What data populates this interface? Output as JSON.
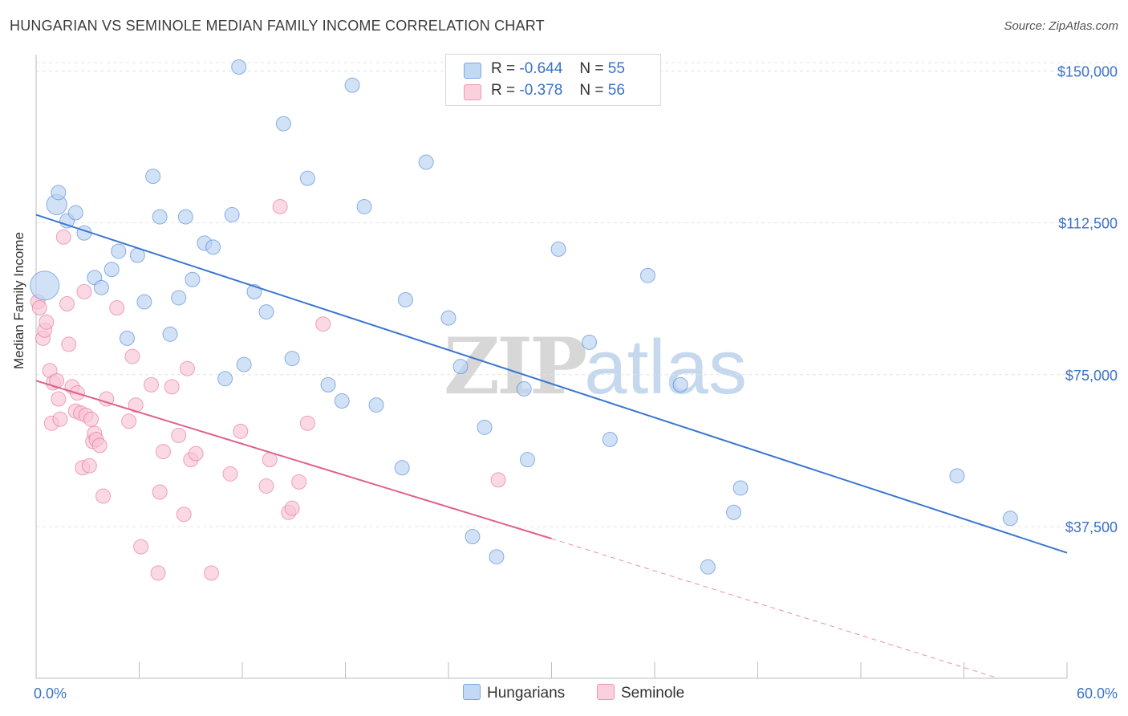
{
  "header": {
    "title": "HUNGARIAN VS SEMINOLE MEDIAN FAMILY INCOME CORRELATION CHART",
    "source": "Source: ZipAtlas.com"
  },
  "watermark": {
    "zip": "ZIP",
    "atlas": "atlas"
  },
  "legend": {
    "rows": [
      {
        "r_label": "R =",
        "r_value": "-0.644",
        "n_label": "N =",
        "n_value": "55",
        "color": "#aac9f0"
      },
      {
        "r_label": "R =",
        "r_value": "-0.378",
        "n_label": "N =",
        "n_value": "56",
        "color": "#f7b6cb"
      }
    ]
  },
  "bottom_legend": {
    "hungarians": "Hungarians",
    "seminole": "Seminole"
  },
  "chart_data": {
    "type": "scatter",
    "ylabel": "Median Family Income",
    "xlim": [
      0,
      60
    ],
    "ylim": [
      0,
      162000
    ],
    "x_tick_labels": [
      "0.0%",
      "60.0%"
    ],
    "y_ticks": [
      {
        "value": 37500,
        "label": "$37,500"
      },
      {
        "value": 75000,
        "label": "$75,000"
      },
      {
        "value": 112500,
        "label": "$112,500"
      },
      {
        "value": 150000,
        "label": "$150,000"
      }
    ],
    "grid": "horizontal dashed",
    "legend_position": "top-center",
    "series": [
      {
        "name": "Hungarians",
        "color": "#3a76d0",
        "fill": "#b9d3f3",
        "trend": {
          "x": [
            0,
            60
          ],
          "y": [
            114500,
            31000
          ]
        },
        "points": [
          [
            0.5,
            97000,
            2.0
          ],
          [
            1.2,
            117000,
            1.4
          ],
          [
            1.3,
            120000,
            1.0
          ],
          [
            1.8,
            113000,
            1.0
          ],
          [
            2.3,
            115000,
            1.0
          ],
          [
            2.8,
            110000,
            1.0
          ],
          [
            3.4,
            99000,
            1.0
          ],
          [
            3.8,
            96500,
            1.0
          ],
          [
            4.4,
            101000,
            1.0
          ],
          [
            4.8,
            105500,
            1.0
          ],
          [
            5.3,
            84000,
            1.0
          ],
          [
            5.9,
            104500,
            1.0
          ],
          [
            6.3,
            93000,
            1.0
          ],
          [
            6.8,
            124000,
            1.0
          ],
          [
            7.2,
            114000,
            1.0
          ],
          [
            7.8,
            85000,
            1.0
          ],
          [
            8.3,
            94000,
            1.0
          ],
          [
            8.7,
            114000,
            1.0
          ],
          [
            9.1,
            98500,
            1.0
          ],
          [
            9.8,
            107500,
            1.0
          ],
          [
            10.3,
            106500,
            1.0
          ],
          [
            11.0,
            74000,
            1.0
          ],
          [
            11.4,
            114500,
            1.0
          ],
          [
            12.1,
            77500,
            1.0
          ],
          [
            11.8,
            151000,
            1.0
          ],
          [
            12.7,
            95500,
            1.0
          ],
          [
            13.4,
            90500,
            1.0
          ],
          [
            14.4,
            137000,
            1.0
          ],
          [
            14.9,
            79000,
            1.0
          ],
          [
            15.8,
            123500,
            1.0
          ],
          [
            17.0,
            72500,
            1.0
          ],
          [
            17.8,
            68500,
            1.0
          ],
          [
            18.4,
            146500,
            1.0
          ],
          [
            19.1,
            116500,
            1.0
          ],
          [
            19.8,
            67500,
            1.0
          ],
          [
            21.3,
            52000,
            1.0
          ],
          [
            21.5,
            93500,
            1.0
          ],
          [
            22.7,
            127500,
            1.0
          ],
          [
            24.0,
            89000,
            1.0
          ],
          [
            24.7,
            77000,
            1.0
          ],
          [
            25.4,
            35000,
            1.0
          ],
          [
            26.1,
            62000,
            1.0
          ],
          [
            26.8,
            30000,
            1.0
          ],
          [
            28.4,
            71500,
            1.0
          ],
          [
            28.6,
            54000,
            1.0
          ],
          [
            30.4,
            106000,
            1.0
          ],
          [
            32.2,
            83000,
            1.0
          ],
          [
            33.4,
            59000,
            1.0
          ],
          [
            35.6,
            99500,
            1.0
          ],
          [
            37.5,
            72500,
            1.0
          ],
          [
            39.1,
            27500,
            1.0
          ],
          [
            40.6,
            41000,
            1.0
          ],
          [
            41.0,
            47000,
            1.0
          ],
          [
            53.6,
            50000,
            1.0
          ],
          [
            56.7,
            39500,
            1.0
          ]
        ]
      },
      {
        "name": "Seminole",
        "color": "#e0608c",
        "fill": "#f9c5d5",
        "trend": {
          "x": [
            0,
            30
          ],
          "y": [
            73500,
            34500
          ]
        },
        "trend_dashed": {
          "x": [
            30,
            56
          ],
          "y": [
            34500,
            0
          ]
        },
        "points": [
          [
            0.1,
            93000,
            1.0
          ],
          [
            0.2,
            91500,
            1.0
          ],
          [
            0.4,
            84000,
            1.0
          ],
          [
            0.5,
            86000,
            1.0
          ],
          [
            0.6,
            88000,
            1.0
          ],
          [
            0.8,
            76000,
            1.0
          ],
          [
            0.9,
            63000,
            1.0
          ],
          [
            1.0,
            73000,
            1.0
          ],
          [
            1.2,
            73500,
            1.0
          ],
          [
            1.3,
            69000,
            1.0
          ],
          [
            1.4,
            64000,
            1.0
          ],
          [
            1.6,
            109000,
            1.0
          ],
          [
            1.8,
            92500,
            1.0
          ],
          [
            1.9,
            82500,
            1.0
          ],
          [
            2.1,
            72000,
            1.0
          ],
          [
            2.3,
            66000,
            1.0
          ],
          [
            2.4,
            70500,
            1.0
          ],
          [
            2.6,
            65500,
            1.0
          ],
          [
            2.7,
            52000,
            1.0
          ],
          [
            2.8,
            95500,
            1.0
          ],
          [
            2.9,
            65000,
            1.0
          ],
          [
            3.1,
            52500,
            1.0
          ],
          [
            3.2,
            64000,
            1.0
          ],
          [
            3.3,
            58500,
            1.0
          ],
          [
            3.4,
            60500,
            1.0
          ],
          [
            3.5,
            59000,
            1.0
          ],
          [
            3.7,
            57500,
            1.0
          ],
          [
            3.9,
            45000,
            1.0
          ],
          [
            4.1,
            69000,
            1.0
          ],
          [
            4.7,
            91500,
            1.0
          ],
          [
            5.4,
            63500,
            1.0
          ],
          [
            5.6,
            79500,
            1.0
          ],
          [
            5.8,
            67500,
            1.0
          ],
          [
            6.1,
            32500,
            1.0
          ],
          [
            6.7,
            72500,
            1.0
          ],
          [
            7.1,
            26000,
            1.0
          ],
          [
            7.2,
            46000,
            1.0
          ],
          [
            7.4,
            56000,
            1.0
          ],
          [
            7.9,
            72000,
            1.0
          ],
          [
            8.3,
            60000,
            1.0
          ],
          [
            8.6,
            40500,
            1.0
          ],
          [
            8.8,
            76500,
            1.0
          ],
          [
            9.0,
            54000,
            1.0
          ],
          [
            9.3,
            55500,
            1.0
          ],
          [
            10.2,
            26000,
            1.0
          ],
          [
            11.3,
            50500,
            1.0
          ],
          [
            11.9,
            61000,
            1.0
          ],
          [
            13.4,
            47500,
            1.0
          ],
          [
            13.6,
            54000,
            1.0
          ],
          [
            14.2,
            116500,
            1.0
          ],
          [
            14.7,
            41000,
            1.0
          ],
          [
            14.9,
            42000,
            1.0
          ],
          [
            15.3,
            48500,
            1.0
          ],
          [
            15.8,
            63000,
            1.0
          ],
          [
            16.7,
            87500,
            1.0
          ],
          [
            26.9,
            49000,
            1.0
          ]
        ]
      }
    ]
  }
}
